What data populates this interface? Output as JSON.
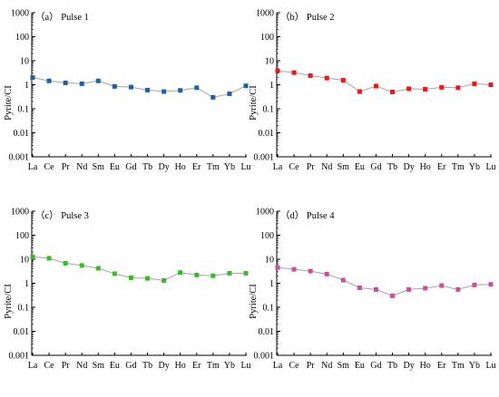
{
  "colors": {
    "line": "#a6a6a6",
    "axis": "#000000"
  },
  "chart_data": [
    {
      "type": "line",
      "title": "（a） Pulse 1",
      "ylabel": "Pyrite/CI",
      "xlabel": "",
      "yscale": "log",
      "ylim": [
        0.001,
        1000
      ],
      "yticks": [
        "0.001",
        "0.01",
        "0.1",
        "1",
        "10",
        "100",
        "1000"
      ],
      "categories": [
        "La",
        "Ce",
        "Pr",
        "Nd",
        "Sm",
        "Eu",
        "Gd",
        "Tb",
        "Dy",
        "Ho",
        "Er",
        "Tm",
        "Yb",
        "Lu"
      ],
      "marker_color": "#1f5fa8",
      "values": [
        2.0,
        1.45,
        1.2,
        1.1,
        1.45,
        0.85,
        0.8,
        0.6,
        0.52,
        0.58,
        0.75,
        0.3,
        0.42,
        0.9
      ]
    },
    {
      "type": "line",
      "title": "（b） Pulse 2",
      "ylabel": "Pyrite/CI",
      "xlabel": "",
      "yscale": "log",
      "ylim": [
        0.001,
        1000
      ],
      "yticks": [
        "0.001",
        "0.01",
        "0.1",
        "1",
        "10",
        "100",
        "1000"
      ],
      "categories": [
        "La",
        "Ce",
        "Pr",
        "Nd",
        "Sm",
        "Eu",
        "Gd",
        "Tb",
        "Dy",
        "Ho",
        "Er",
        "Tm",
        "Yb",
        "Lu"
      ],
      "marker_color": "#e41a1c",
      "values": [
        3.8,
        3.2,
        2.4,
        1.9,
        1.55,
        0.52,
        0.88,
        0.5,
        0.68,
        0.65,
        0.78,
        0.75,
        1.1,
        1.0
      ]
    },
    {
      "type": "line",
      "title": "（c） Pulse 3",
      "ylabel": "Pyrite/CI",
      "xlabel": "",
      "yscale": "log",
      "ylim": [
        0.001,
        1000
      ],
      "yticks": [
        "0.001",
        "0.01",
        "0.1",
        "1",
        "10",
        "100",
        "1000"
      ],
      "categories": [
        "La",
        "Ce",
        "Pr",
        "Nd",
        "Sm",
        "Eu",
        "Gd",
        "Tb",
        "Dy",
        "Ho",
        "Er",
        "Tm",
        "Yb",
        "Lu"
      ],
      "marker_color": "#3cb82e",
      "values": [
        12.5,
        11.0,
        6.8,
        5.5,
        4.2,
        2.5,
        1.7,
        1.6,
        1.3,
        2.8,
        2.2,
        2.05,
        2.6,
        2.6
      ]
    },
    {
      "type": "line",
      "title": "（d） Pulse 4",
      "ylabel": "Pyrite/CI",
      "xlabel": "",
      "yscale": "log",
      "ylim": [
        0.001,
        1000
      ],
      "yticks": [
        "0.001",
        "0.01",
        "0.1",
        "1",
        "10",
        "100",
        "1000"
      ],
      "categories": [
        "La",
        "Ce",
        "Pr",
        "Nd",
        "Sm",
        "Eu",
        "Gd",
        "Tb",
        "Dy",
        "Ho",
        "Er",
        "Tm",
        "Yb",
        "Lu"
      ],
      "marker_color": "#c8509b",
      "values": [
        4.5,
        3.8,
        3.2,
        2.4,
        1.35,
        0.65,
        0.55,
        0.3,
        0.55,
        0.62,
        0.8,
        0.55,
        0.85,
        0.9
      ]
    }
  ]
}
